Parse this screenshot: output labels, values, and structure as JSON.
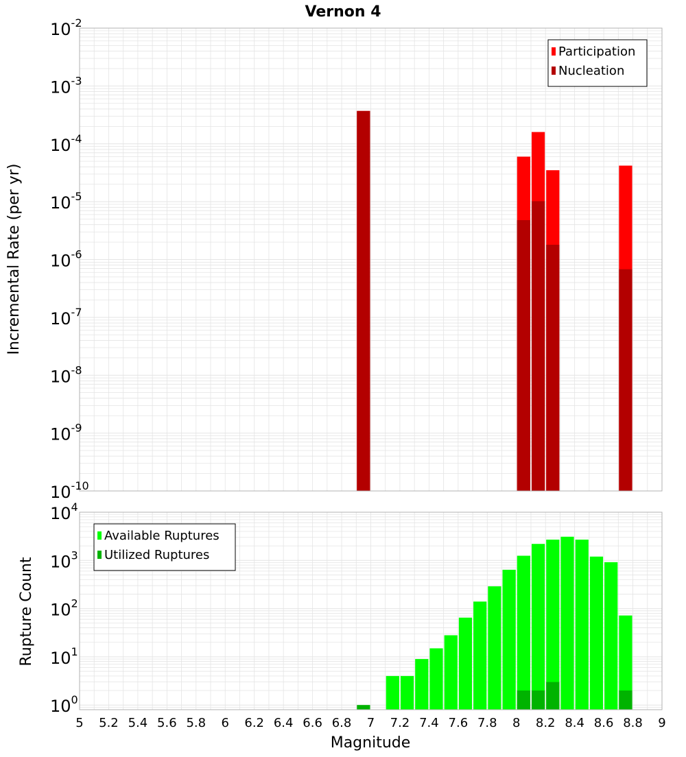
{
  "title": "Vernon 4",
  "x_axis": {
    "label": "Magnitude",
    "range": [
      5,
      9
    ],
    "ticks": [
      "5",
      "5.2",
      "5.4",
      "5.6",
      "5.8",
      "6",
      "6.2",
      "6.4",
      "6.6",
      "6.8",
      "7",
      "7.2",
      "7.4",
      "7.6",
      "7.8",
      "8",
      "8.2",
      "8.4",
      "8.6",
      "8.8",
      "9"
    ]
  },
  "top_panel": {
    "ylabel": "Incremental Rate (per yr)",
    "yscale": "log",
    "ylim": [
      1e-10,
      0.01
    ],
    "ytick_exponents": [
      "-10",
      "-9",
      "-8",
      "-7",
      "-6",
      "-5",
      "-4",
      "-3",
      "-2"
    ],
    "legend": [
      "Participation",
      "Nucleation"
    ],
    "legend_position": "top-right"
  },
  "bottom_panel": {
    "ylabel": "Rupture Count",
    "yscale": "log",
    "ylim": [
      0.8,
      10000
    ],
    "ytick_exponents": [
      "0",
      "1",
      "2",
      "3",
      "4"
    ],
    "legend": [
      "Available Ruptures",
      "Utilized Ruptures"
    ],
    "legend_position": "top-left"
  },
  "colors": {
    "participation": "#ff0000",
    "nucleation": "#b30000",
    "available": "#00ff00",
    "utilized": "#00b300",
    "grid": "#e4e4e4",
    "axis_border": "#b0b0b0"
  },
  "chart_data": [
    {
      "type": "bar",
      "title": "Vernon 4",
      "xlabel": "Magnitude",
      "ylabel": "Incremental Rate (per yr)",
      "yscale": "log",
      "ylim": [
        1e-10,
        0.01
      ],
      "xlim": [
        5,
        9
      ],
      "series": [
        {
          "name": "Participation",
          "x": [
            6.95,
            8.05,
            8.15,
            8.25,
            8.75
          ],
          "values": [
            0.00037,
            6e-05,
            0.00016,
            3.5e-05,
            4.2e-05
          ]
        },
        {
          "name": "Nucleation",
          "x": [
            6.95,
            8.05,
            8.15,
            8.25,
            8.75
          ],
          "values": [
            0.00037,
            4.8e-06,
            1.02e-05,
            1.8e-06,
            6.8e-07
          ]
        }
      ]
    },
    {
      "type": "bar",
      "xlabel": "Magnitude",
      "ylabel": "Rupture Count",
      "yscale": "log",
      "ylim": [
        0.8,
        10000
      ],
      "xlim": [
        5,
        9
      ],
      "series": [
        {
          "name": "Available Ruptures",
          "x": [
            7.15,
            7.25,
            7.35,
            7.45,
            7.55,
            7.65,
            7.75,
            7.85,
            7.95,
            8.05,
            8.15,
            8.25,
            8.35,
            8.45,
            8.55,
            8.65,
            8.75
          ],
          "values": [
            4,
            4,
            9,
            15,
            28,
            65,
            140,
            290,
            640,
            1250,
            2200,
            2700,
            3100,
            2700,
            1200,
            920,
            72
          ]
        },
        {
          "name": "Utilized Ruptures",
          "x": [
            6.95,
            8.05,
            8.15,
            8.25,
            8.75
          ],
          "values": [
            1,
            2,
            2,
            3,
            2
          ]
        }
      ]
    }
  ]
}
